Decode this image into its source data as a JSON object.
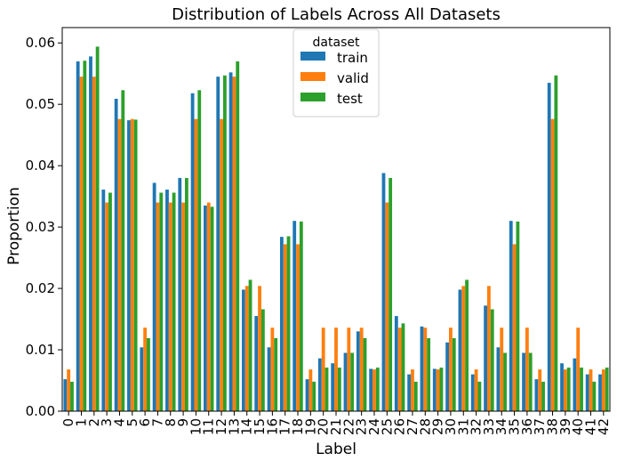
{
  "chart_data": {
    "type": "bar",
    "title": "Distribution of Labels Across All Datasets",
    "xlabel": "Label",
    "ylabel": "Proportion",
    "ylim": [
      0,
      0.0625
    ],
    "yticks": [
      0.0,
      0.01,
      0.02,
      0.03,
      0.04,
      0.05,
      0.06
    ],
    "ytick_labels": [
      "0.00",
      "0.01",
      "0.02",
      "0.03",
      "0.04",
      "0.05",
      "0.06"
    ],
    "grid": false,
    "legend": {
      "title": "dataset",
      "placement": "top-center"
    },
    "categories": [
      "0",
      "1",
      "2",
      "3",
      "4",
      "5",
      "6",
      "7",
      "8",
      "9",
      "10",
      "11",
      "12",
      "13",
      "14",
      "15",
      "16",
      "17",
      "18",
      "19",
      "20",
      "21",
      "22",
      "23",
      "24",
      "25",
      "26",
      "27",
      "28",
      "29",
      "30",
      "31",
      "32",
      "33",
      "34",
      "35",
      "36",
      "37",
      "38",
      "39",
      "40",
      "41",
      "42"
    ],
    "series": [
      {
        "name": "train",
        "color": "#1f77b4",
        "values": [
          0.0052,
          0.057,
          0.0578,
          0.0361,
          0.0509,
          0.0474,
          0.0104,
          0.0372,
          0.0361,
          0.038,
          0.0518,
          0.0335,
          0.0545,
          0.0552,
          0.0198,
          0.0155,
          0.0104,
          0.0284,
          0.031,
          0.0052,
          0.0086,
          0.0078,
          0.0095,
          0.013,
          0.0069,
          0.0388,
          0.0155,
          0.006,
          0.0138,
          0.0069,
          0.0112,
          0.0198,
          0.006,
          0.0172,
          0.0104,
          0.031,
          0.0095,
          0.0052,
          0.0535,
          0.0078,
          0.0086,
          0.006,
          0.006
        ]
      },
      {
        "name": "valid",
        "color": "#ff7f0e",
        "values": [
          0.0068,
          0.0545,
          0.0545,
          0.034,
          0.0476,
          0.0476,
          0.0136,
          0.034,
          0.034,
          0.034,
          0.0476,
          0.034,
          0.0476,
          0.0545,
          0.0204,
          0.0204,
          0.0136,
          0.0272,
          0.0272,
          0.0068,
          0.0136,
          0.0136,
          0.0136,
          0.0136,
          0.0068,
          0.034,
          0.0136,
          0.0068,
          0.0136,
          0.0068,
          0.0136,
          0.0204,
          0.0068,
          0.0204,
          0.0136,
          0.0272,
          0.0136,
          0.0068,
          0.0476,
          0.0068,
          0.0136,
          0.0068,
          0.0068
        ]
      },
      {
        "name": "test",
        "color": "#2ca02c",
        "values": [
          0.0048,
          0.0571,
          0.0594,
          0.0356,
          0.0523,
          0.0475,
          0.0119,
          0.0356,
          0.0356,
          0.038,
          0.0523,
          0.0333,
          0.0547,
          0.057,
          0.0214,
          0.0166,
          0.0119,
          0.0285,
          0.0309,
          0.0048,
          0.0071,
          0.0071,
          0.0095,
          0.0119,
          0.0071,
          0.038,
          0.0143,
          0.0048,
          0.0119,
          0.0071,
          0.0119,
          0.0214,
          0.0048,
          0.0166,
          0.0095,
          0.0309,
          0.0095,
          0.0048,
          0.0547,
          0.0071,
          0.0071,
          0.0048,
          0.0071
        ]
      }
    ]
  }
}
